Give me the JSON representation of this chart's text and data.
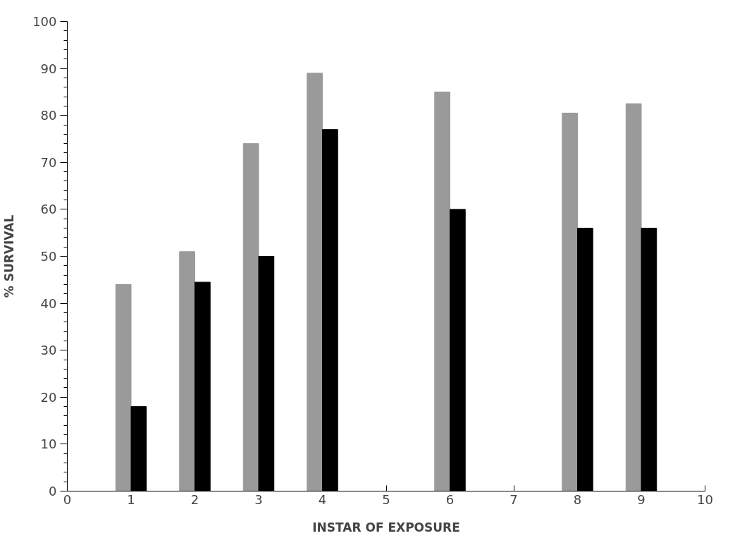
{
  "chart_data": {
    "type": "bar",
    "xlabel": "INSTAR OF EXPOSURE",
    "ylabel": "% SURVIVAL",
    "x": [
      1,
      2,
      3,
      4,
      6,
      8,
      9
    ],
    "series": [
      {
        "color": "#9a9a9a",
        "values": [
          44,
          51,
          74,
          89,
          85,
          80.5,
          82.5
        ]
      },
      {
        "color": "#000000",
        "values": [
          18,
          44.5,
          50,
          77,
          60,
          56,
          56
        ]
      }
    ],
    "xlim": [
      0,
      10
    ],
    "xticks": [
      0,
      1,
      2,
      3,
      4,
      5,
      6,
      7,
      8,
      9,
      10
    ],
    "ylim": [
      0,
      100
    ],
    "yticks": [
      0,
      10,
      20,
      30,
      40,
      50,
      60,
      70,
      80,
      90,
      100
    ],
    "grid": false
  }
}
